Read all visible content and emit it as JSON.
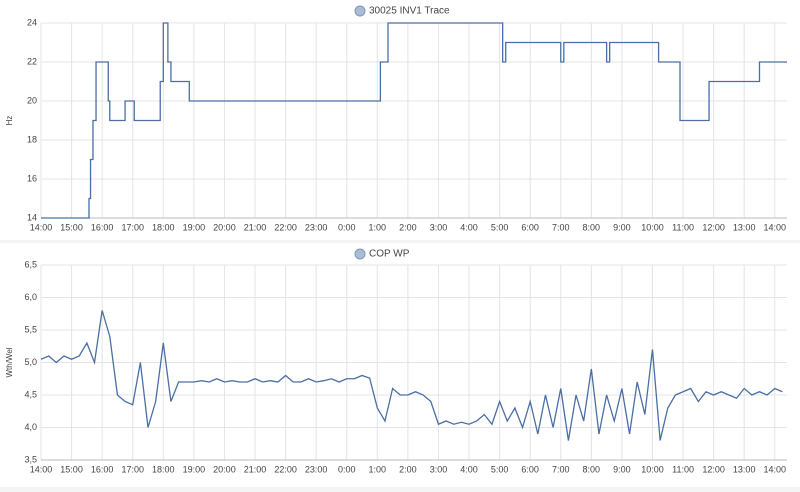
{
  "chart_data": [
    {
      "type": "line",
      "step": true,
      "ylabel": "Hz",
      "series": [
        {
          "name": "30025 INV1 Trace",
          "color": "#4a6fa5",
          "x": [
            0,
            1.57,
            1.62,
            1.7,
            1.8,
            2.2,
            2.25,
            2.75,
            3.05,
            3.9,
            4.0,
            4.15,
            4.25,
            4.85,
            11.1,
            11.35,
            15.1,
            15.2,
            17.0,
            17.1,
            18.5,
            18.6,
            20.2,
            20.9,
            21.85,
            23.5,
            24.4
          ],
          "values": [
            14,
            15,
            17,
            19,
            22,
            20,
            19,
            20,
            19,
            21,
            24,
            22,
            21,
            20,
            22,
            24,
            22,
            23,
            22,
            23,
            22,
            23,
            22,
            19,
            21,
            22,
            22
          ]
        }
      ],
      "xlim": [
        0,
        24.4
      ],
      "xticks": [
        {
          "value": 0,
          "label": "14:00"
        },
        {
          "value": 1,
          "label": "15:00"
        },
        {
          "value": 2,
          "label": "16:00"
        },
        {
          "value": 3,
          "label": "17:00"
        },
        {
          "value": 4,
          "label": "18:00"
        },
        {
          "value": 5,
          "label": "19:00"
        },
        {
          "value": 6,
          "label": "20:00"
        },
        {
          "value": 7,
          "label": "21:00"
        },
        {
          "value": 8,
          "label": "22:00"
        },
        {
          "value": 9,
          "label": "23:00"
        },
        {
          "value": 10,
          "label": "0:00"
        },
        {
          "value": 11,
          "label": "1:00"
        },
        {
          "value": 12,
          "label": "2:00"
        },
        {
          "value": 13,
          "label": "3:00"
        },
        {
          "value": 14,
          "label": "4:00"
        },
        {
          "value": 15,
          "label": "5:00"
        },
        {
          "value": 16,
          "label": "6:00"
        },
        {
          "value": 17,
          "label": "7:00"
        },
        {
          "value": 18,
          "label": "8:00"
        },
        {
          "value": 19,
          "label": "9:00"
        },
        {
          "value": 20,
          "label": "10:00"
        },
        {
          "value": 21,
          "label": "11:00"
        },
        {
          "value": 22,
          "label": "12:00"
        },
        {
          "value": 23,
          "label": "13:00"
        },
        {
          "value": 24,
          "label": "14:00"
        }
      ],
      "ylim": [
        14,
        24
      ],
      "yticks": [
        14,
        16,
        18,
        20,
        22,
        24
      ],
      "grid": true
    },
    {
      "type": "line",
      "step": false,
      "ylabel": "Wth/Wel",
      "series": [
        {
          "name": "COP WP",
          "color": "#4a6fa5",
          "x": [
            0,
            0.25,
            0.5,
            0.75,
            1,
            1.25,
            1.5,
            1.75,
            2,
            2.25,
            2.5,
            2.75,
            3,
            3.25,
            3.5,
            3.75,
            4,
            4.25,
            4.5,
            4.75,
            5,
            5.25,
            5.5,
            5.75,
            6,
            6.25,
            6.5,
            6.75,
            7,
            7.25,
            7.5,
            7.75,
            8,
            8.25,
            8.5,
            8.75,
            9,
            9.25,
            9.5,
            9.75,
            10,
            10.25,
            10.5,
            10.75,
            11,
            11.25,
            11.5,
            11.75,
            12,
            12.25,
            12.5,
            12.75,
            13,
            13.25,
            13.5,
            13.75,
            14,
            14.25,
            14.5,
            14.75,
            15,
            15.25,
            15.5,
            15.75,
            16,
            16.25,
            16.5,
            16.75,
            17,
            17.25,
            17.5,
            17.75,
            18,
            18.25,
            18.5,
            18.75,
            19,
            19.25,
            19.5,
            19.75,
            20,
            20.25,
            20.5,
            20.75,
            21,
            21.25,
            21.5,
            21.75,
            22,
            22.25,
            22.5,
            22.75,
            23,
            23.25,
            23.5,
            23.75,
            24,
            24.25
          ],
          "values": [
            5.05,
            5.1,
            5.0,
            5.1,
            5.05,
            5.1,
            5.3,
            5.0,
            5.8,
            5.4,
            4.5,
            4.4,
            4.35,
            5.0,
            4.0,
            4.4,
            5.3,
            4.4,
            4.7,
            4.7,
            4.7,
            4.72,
            4.7,
            4.75,
            4.7,
            4.72,
            4.7,
            4.7,
            4.75,
            4.7,
            4.72,
            4.7,
            4.8,
            4.7,
            4.7,
            4.75,
            4.7,
            4.72,
            4.75,
            4.7,
            4.75,
            4.75,
            4.8,
            4.76,
            4.3,
            4.1,
            4.6,
            4.5,
            4.5,
            4.55,
            4.5,
            4.4,
            4.05,
            4.1,
            4.05,
            4.08,
            4.05,
            4.1,
            4.2,
            4.05,
            4.4,
            4.1,
            4.3,
            4.0,
            4.4,
            3.9,
            4.5,
            4.0,
            4.6,
            3.8,
            4.5,
            4.1,
            4.9,
            3.9,
            4.5,
            4.1,
            4.6,
            3.9,
            4.7,
            4.2,
            5.2,
            3.8,
            4.3,
            4.5,
            4.55,
            4.6,
            4.4,
            4.55,
            4.5,
            4.55,
            4.5,
            4.45,
            4.6,
            4.5,
            4.55,
            4.5,
            4.6,
            4.55
          ]
        }
      ],
      "xlim": [
        0,
        24.4
      ],
      "xticks": [
        {
          "value": 0,
          "label": "14:00"
        },
        {
          "value": 1,
          "label": "15:00"
        },
        {
          "value": 2,
          "label": "16:00"
        },
        {
          "value": 3,
          "label": "17:00"
        },
        {
          "value": 4,
          "label": "18:00"
        },
        {
          "value": 5,
          "label": "19:00"
        },
        {
          "value": 6,
          "label": "20:00"
        },
        {
          "value": 7,
          "label": "21:00"
        },
        {
          "value": 8,
          "label": "22:00"
        },
        {
          "value": 9,
          "label": "23:00"
        },
        {
          "value": 10,
          "label": "0:00"
        },
        {
          "value": 11,
          "label": "1:00"
        },
        {
          "value": 12,
          "label": "2:00"
        },
        {
          "value": 13,
          "label": "3:00"
        },
        {
          "value": 14,
          "label": "4:00"
        },
        {
          "value": 15,
          "label": "5:00"
        },
        {
          "value": 16,
          "label": "6:00"
        },
        {
          "value": 17,
          "label": "7:00"
        },
        {
          "value": 18,
          "label": "8:00"
        },
        {
          "value": 19,
          "label": "9:00"
        },
        {
          "value": 20,
          "label": "10:00"
        },
        {
          "value": 21,
          "label": "11:00"
        },
        {
          "value": 22,
          "label": "12:00"
        },
        {
          "value": 23,
          "label": "13:00"
        },
        {
          "value": 24,
          "label": "14:00"
        }
      ],
      "ylim": [
        3.5,
        6.5
      ],
      "yticks": [
        {
          "value": 3.5,
          "label": "3,5"
        },
        {
          "value": 4,
          "label": "4,0"
        },
        {
          "value": 4.5,
          "label": "4,5"
        },
        {
          "value": 5,
          "label": "5,0"
        },
        {
          "value": 5.5,
          "label": "5,5"
        },
        {
          "value": 6,
          "label": "6,0"
        },
        {
          "value": 6.5,
          "label": "6,5"
        }
      ],
      "grid": true
    }
  ]
}
